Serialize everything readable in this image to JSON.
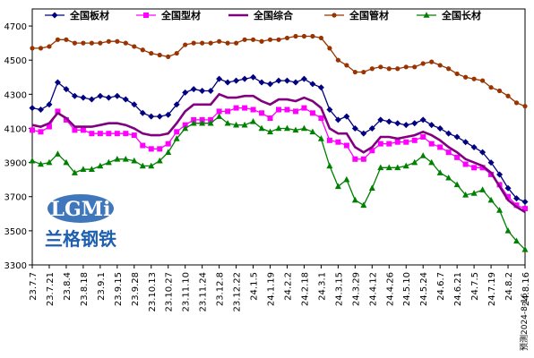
{
  "logo": {
    "mark": "LGMi",
    "name": "兰格钢铁"
  },
  "footnote": "预测2024-8-16",
  "chart_data": {
    "type": "line",
    "ylim": [
      3300,
      4800
    ],
    "yticks": [
      3300,
      3500,
      3700,
      3900,
      4100,
      4300,
      4500,
      4700
    ],
    "legend_position": "top",
    "grid": false,
    "categories": [
      "23.7.7",
      "23.7.14",
      "23.7.21",
      "23.7.28",
      "23.8.4",
      "23.8.11",
      "23.8.18",
      "23.8.25",
      "23.9.1",
      "23.9.8",
      "23.9.15",
      "23.9.22",
      "23.9.28",
      "23.10.6",
      "23.10.13",
      "23.10.20",
      "23.10.27",
      "23.11.3",
      "23.11.10",
      "23.11.17",
      "23.11.24",
      "23.12.1",
      "23.12.8",
      "23.12.15",
      "23.12.22",
      "23.12.29",
      "24.1.5",
      "24.1.12",
      "24.1.19",
      "24.1.26",
      "24.2.2",
      "24.2.9",
      "24.2.18",
      "24.2.23",
      "24.3.1",
      "24.3.8",
      "24.3.15",
      "24.3.22",
      "24.3.29",
      "24.4.3",
      "24.4.12",
      "24.4.19",
      "24.4.26",
      "24.4.30",
      "24.5.10",
      "24.5.17",
      "24.5.24",
      "24.5.31",
      "24.6.7",
      "24.6.14",
      "24.6.21",
      "24.6.28",
      "24.7.5",
      "24.7.12",
      "24.7.19",
      "24.7.26",
      "24.8.2",
      "24.8.9",
      "24.8.16"
    ],
    "x_tick_labels": [
      "23.7.7",
      "23.7.21",
      "23.8.4",
      "23.8.18",
      "23.9.1",
      "23.9.15",
      "23.9.28",
      "23.10.13",
      "23.10.27",
      "23.11.10",
      "23.11.24",
      "23.12.8",
      "23.12.22",
      "24.1.5",
      "24.1.19",
      "24.2.2",
      "24.2.18",
      "24.3.1",
      "24.3.15",
      "24.3.29",
      "24.4.12",
      "24.4.26",
      "24.5.10",
      "24.5.24",
      "24.6.7",
      "24.6.21",
      "24.7.5",
      "24.7.19",
      "24.8.2",
      "24.8.16"
    ],
    "series": [
      {
        "name": "全国板材",
        "color": "#000080",
        "marker": "diamond",
        "values": [
          4220,
          4210,
          4240,
          4370,
          4330,
          4290,
          4280,
          4270,
          4290,
          4280,
          4290,
          4270,
          4240,
          4190,
          4170,
          4170,
          4180,
          4240,
          4310,
          4330,
          4320,
          4320,
          4390,
          4370,
          4380,
          4390,
          4400,
          4370,
          4360,
          4380,
          4380,
          4370,
          4390,
          4360,
          4340,
          4210,
          4150,
          4170,
          4100,
          4070,
          4100,
          4150,
          4140,
          4130,
          4120,
          4130,
          4150,
          4120,
          4100,
          4070,
          4050,
          4020,
          3990,
          3960,
          3900,
          3830,
          3750,
          3690,
          3670
        ]
      },
      {
        "name": "全国型材",
        "color": "#ff00ff",
        "marker": "square",
        "values": [
          4090,
          4080,
          4110,
          4200,
          4150,
          4090,
          4090,
          4070,
          4070,
          4070,
          4070,
          4070,
          4060,
          4000,
          3980,
          3980,
          4010,
          4080,
          4120,
          4150,
          4150,
          4150,
          4200,
          4200,
          4220,
          4220,
          4210,
          4190,
          4160,
          4210,
          4210,
          4200,
          4220,
          4190,
          4160,
          4030,
          4020,
          4000,
          3920,
          3920,
          3970,
          4010,
          4010,
          4020,
          4020,
          4030,
          4050,
          4010,
          3990,
          3960,
          3930,
          3890,
          3870,
          3870,
          3830,
          3770,
          3700,
          3650,
          3630
        ]
      },
      {
        "name": "全国综合",
        "color": "#800080",
        "marker": "none",
        "values": [
          4120,
          4110,
          4130,
          4190,
          4160,
          4110,
          4110,
          4110,
          4120,
          4130,
          4130,
          4120,
          4100,
          4070,
          4060,
          4060,
          4070,
          4130,
          4200,
          4240,
          4240,
          4240,
          4300,
          4280,
          4280,
          4290,
          4290,
          4260,
          4240,
          4270,
          4270,
          4260,
          4280,
          4260,
          4220,
          4100,
          4070,
          4070,
          3990,
          3960,
          3990,
          4050,
          4050,
          4040,
          4050,
          4060,
          4080,
          4060,
          4030,
          3990,
          3960,
          3920,
          3900,
          3880,
          3840,
          3760,
          3680,
          3640,
          3610
        ]
      },
      {
        "name": "全国管材",
        "color": "#993300",
        "marker": "circle",
        "values": [
          4570,
          4570,
          4580,
          4620,
          4620,
          4600,
          4600,
          4600,
          4600,
          4610,
          4610,
          4600,
          4580,
          4560,
          4540,
          4530,
          4520,
          4540,
          4590,
          4600,
          4600,
          4600,
          4610,
          4600,
          4600,
          4620,
          4620,
          4610,
          4620,
          4620,
          4630,
          4640,
          4640,
          4640,
          4630,
          4570,
          4500,
          4470,
          4430,
          4430,
          4450,
          4460,
          4450,
          4450,
          4460,
          4460,
          4480,
          4490,
          4470,
          4450,
          4420,
          4400,
          4390,
          4380,
          4340,
          4320,
          4290,
          4250,
          4230
        ]
      },
      {
        "name": "全国长材",
        "color": "#008000",
        "marker": "triangle",
        "values": [
          3910,
          3890,
          3900,
          3950,
          3900,
          3840,
          3860,
          3860,
          3880,
          3900,
          3920,
          3920,
          3910,
          3880,
          3880,
          3910,
          3960,
          4040,
          4100,
          4130,
          4130,
          4130,
          4170,
          4130,
          4120,
          4120,
          4140,
          4100,
          4080,
          4100,
          4100,
          4090,
          4100,
          4080,
          4040,
          3880,
          3760,
          3800,
          3680,
          3650,
          3750,
          3870,
          3870,
          3870,
          3880,
          3900,
          3940,
          3900,
          3840,
          3810,
          3770,
          3710,
          3720,
          3740,
          3680,
          3620,
          3500,
          3440,
          3390
        ]
      }
    ]
  }
}
